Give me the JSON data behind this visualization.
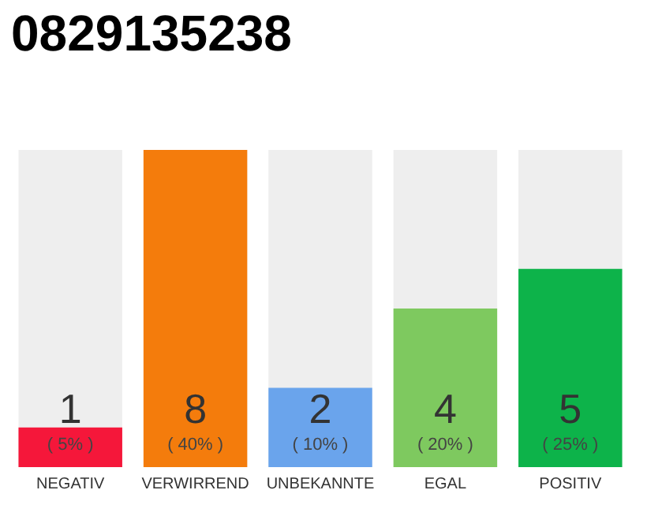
{
  "chart_data": {
    "type": "bar",
    "title": "0829135238",
    "categories": [
      "NEGATIV",
      "VERWIRREND",
      "UNBEKANNTE",
      "EGAL",
      "POSITIV"
    ],
    "values": [
      1,
      8,
      2,
      4,
      5
    ],
    "colors": [
      "#f5173a",
      "#f47c0c",
      "#6aa4ec",
      "#7ec95f",
      "#0db34a"
    ],
    "data_labels": true,
    "annotations": [
      "( 5% )",
      "( 40% )",
      "( 10% )",
      "( 20% )",
      "( 25% )"
    ],
    "ylim": [
      0,
      8
    ],
    "tick_labels": "x"
  }
}
